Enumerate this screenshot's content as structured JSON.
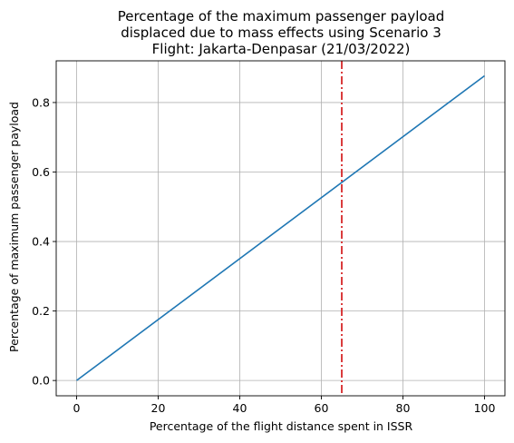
{
  "chart_data": {
    "type": "line",
    "title_lines": [
      "Percentage of the maximum passenger payload",
      "displaced due to mass effects using Scenario 3",
      "Flight: Jakarta-Denpasar (21/03/2022)"
    ],
    "xlabel": "Percentage of the flight distance spent in ISSR",
    "ylabel": "Percentage of maximum passenger payload",
    "xlim": [
      -5,
      105
    ],
    "ylim": [
      -0.044,
      0.92
    ],
    "x_ticks": [
      0,
      20,
      40,
      60,
      80,
      100
    ],
    "y_ticks": [
      0.0,
      0.2,
      0.4,
      0.6,
      0.8
    ],
    "x_tick_labels": [
      "0",
      "20",
      "40",
      "60",
      "80",
      "100"
    ],
    "y_tick_labels": [
      "0.0",
      "0.2",
      "0.4",
      "0.6",
      "0.8"
    ],
    "grid": true,
    "series": [
      {
        "color": "#1f77b4",
        "x": [
          0,
          100
        ],
        "y": [
          0.0,
          0.877
        ]
      }
    ],
    "vertical_line": {
      "x": 65,
      "color": "#d62728",
      "style": "dash-dot"
    }
  }
}
